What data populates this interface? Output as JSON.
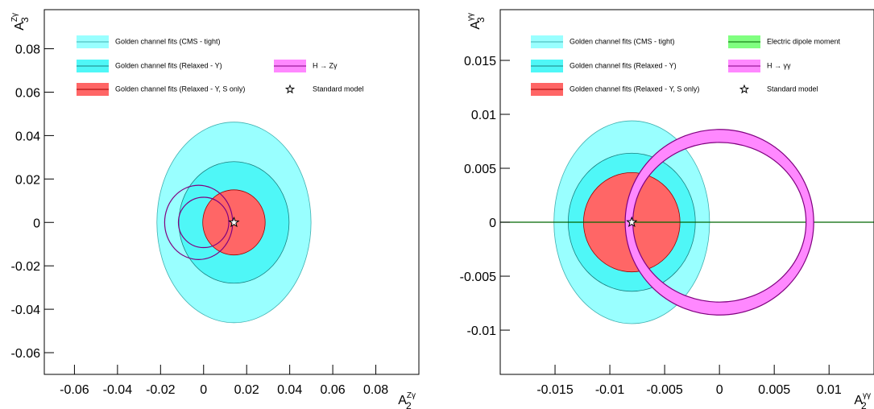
{
  "chart_data": [
    {
      "type": "ellipse",
      "xlabel": {
        "base": "A",
        "sub": "2",
        "sup": "Zγ"
      },
      "ylabel": {
        "base": "A",
        "sub": "3",
        "sup": "Zγ"
      },
      "xlim": [
        -0.074,
        0.1
      ],
      "ylim": [
        -0.07,
        0.098
      ],
      "xticks": [
        -0.06,
        -0.04,
        -0.02,
        0,
        0.02,
        0.04,
        0.06,
        0.08
      ],
      "yticks": [
        -0.06,
        -0.04,
        -0.02,
        0,
        0.02,
        0.04,
        0.06,
        0.08
      ],
      "series": [
        {
          "name": "Golden channel fits (CMS - tight)",
          "style": "fill",
          "color": "#99ffff",
          "edge_color": "#3fb0b0",
          "shapes": [
            {
              "center": [
                0.0141,
                0
              ],
              "radii": [
                0.0358,
                0.0462
              ]
            }
          ]
        },
        {
          "name": "Golden channel fits (Relaxed - Υ)",
          "style": "fill",
          "color": "#4ff7f7",
          "edge_color": "#1a8080",
          "shapes": [
            {
              "center": [
                0.0141,
                0
              ],
              "radii": [
                0.0256,
                0.028
              ]
            }
          ]
        },
        {
          "name": "Golden channel fits (Relaxed - Υ, S only)",
          "style": "fill",
          "color": "#ff6666",
          "edge_color": "#a00000",
          "shapes": [
            {
              "center": [
                0.0141,
                0
              ],
              "radii": [
                0.0145,
                0.015
              ]
            }
          ]
        },
        {
          "name": "H → Zγ",
          "style": "outline",
          "color": "#ff88ff",
          "edge_color": "#800080",
          "shapes": [
            {
              "center": [
                -0.0023,
                0
              ],
              "radii": [
                0.0158,
                0.0171
              ]
            },
            {
              "center": [
                0,
                0
              ],
              "radii": [
                0.0117,
                0.0116
              ]
            }
          ]
        },
        {
          "name": "Standard model",
          "style": "star",
          "color": "#ffffff",
          "edge_color": "#000000",
          "shapes": [
            {
              "center": [
                0.0141,
                0
              ]
            }
          ]
        }
      ]
    },
    {
      "type": "ellipse",
      "xlabel": {
        "base": "A",
        "sub": "2",
        "sup": "γγ"
      },
      "ylabel": {
        "base": "A",
        "sub": "3",
        "sup": "γγ"
      },
      "xlim": [
        -0.02,
        0.0141
      ],
      "ylim": [
        -0.0141,
        0.0197
      ],
      "xticks": [
        -0.015,
        -0.01,
        -0.005,
        0,
        0.005,
        0.01
      ],
      "yticks": [
        -0.01,
        -0.005,
        0,
        0.005,
        0.01,
        0.015
      ],
      "series": [
        {
          "name": "Golden channel fits (CMS - tight)",
          "style": "fill",
          "color": "#99ffff",
          "edge_color": "#3fb0b0",
          "shapes": [
            {
              "center": [
                -0.008,
                0
              ],
              "radii": [
                0.0071,
                0.0094
              ]
            }
          ]
        },
        {
          "name": "Golden channel fits (Relaxed - Υ)",
          "style": "fill",
          "color": "#4ff7f7",
          "edge_color": "#1a8080",
          "shapes": [
            {
              "center": [
                -0.008,
                0
              ],
              "radii": [
                0.0058,
                0.0064
              ]
            }
          ]
        },
        {
          "name": "Golden channel fits (Relaxed - Υ, S only)",
          "style": "fill",
          "color": "#ff6666",
          "edge_color": "#a00000",
          "shapes": [
            {
              "center": [
                -0.008,
                0
              ],
              "radii": [
                0.0044,
                0.0046
              ]
            }
          ]
        },
        {
          "name": "Electric dipole moment",
          "style": "hline",
          "color": "#80ff80",
          "edge_color": "#006600",
          "y": 0
        },
        {
          "name": "H → γγ",
          "style": "ring",
          "color": "#ff88ff",
          "edge_color": "#800080",
          "shapes": [
            {
              "center": [
                0,
                0
              ],
              "radii": [
                0.0086,
                0.0086
              ],
              "inner_radii": [
                0.0079,
                0.0074
              ]
            }
          ]
        },
        {
          "name": "Standard model",
          "style": "star",
          "color": "#ffffff",
          "edge_color": "#000000",
          "shapes": [
            {
              "center": [
                -0.008,
                0
              ]
            }
          ]
        }
      ]
    }
  ]
}
